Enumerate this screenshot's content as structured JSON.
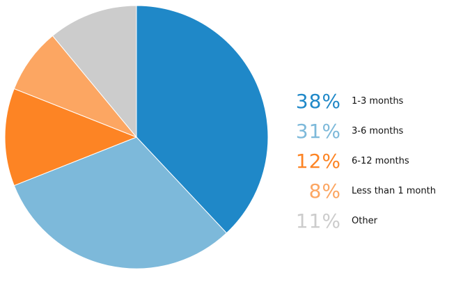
{
  "chart_data": {
    "type": "pie",
    "title": "",
    "legend_position": "right",
    "slices": [
      {
        "label": "1-3 months",
        "value": 38,
        "display": "38%",
        "color": "#1f88c8"
      },
      {
        "label": "3-6 months",
        "value": 31,
        "display": "31%",
        "color": "#7db9da"
      },
      {
        "label": "6-12 months",
        "value": 12,
        "display": "12%",
        "color": "#fd8424"
      },
      {
        "label": "Less than 1 month",
        "value": 8,
        "display": "8%",
        "color": "#fca662"
      },
      {
        "label": "Other",
        "value": 11,
        "display": "11%",
        "color": "#cccccc"
      }
    ]
  }
}
